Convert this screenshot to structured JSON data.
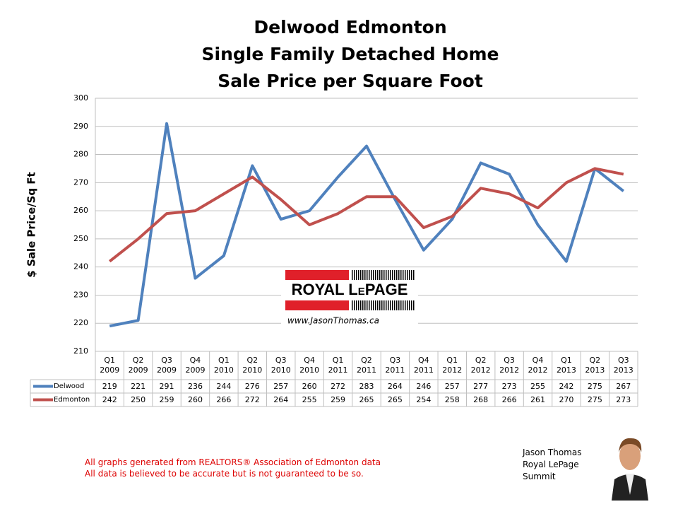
{
  "chart_data": {
    "type": "line",
    "title": "Delwood Edmonton",
    "subtitle": [
      "Single Family Detached Home",
      "Sale Price per Square Foot"
    ],
    "y_label": "$ Sale Price/Sq Ft",
    "categories": [
      "Q1\n2009",
      "Q2\n2009",
      "Q3\n2009",
      "Q4\n2009",
      "Q1\n2010",
      "Q2\n2010",
      "Q3\n2010",
      "Q4\n2010",
      "Q1\n2011",
      "Q2\n2011",
      "Q3\n2011",
      "Q4\n2011",
      "Q1\n2012",
      "Q2\n2012",
      "Q3\n2012",
      "Q4\n2012",
      "Q1\n2013",
      "Q2\n2013",
      "Q3\n2013"
    ],
    "series": [
      {
        "name": "Delwood",
        "color": "#4f81bd",
        "values": [
          219,
          221,
          291,
          236,
          244,
          276,
          257,
          260,
          272,
          283,
          264,
          246,
          257,
          277,
          273,
          255,
          242,
          275,
          267
        ]
      },
      {
        "name": "Edmonton",
        "color": "#c0504d",
        "values": [
          242,
          250,
          259,
          260,
          266,
          272,
          264,
          255,
          259,
          265,
          265,
          254,
          258,
          268,
          266,
          261,
          270,
          275,
          273
        ]
      }
    ],
    "ylim": [
      210,
      300
    ],
    "yticks": [
      210,
      220,
      230,
      240,
      250,
      260,
      270,
      280,
      290,
      300
    ],
    "grid": true
  },
  "logo": {
    "name": "ROYAL LePAGE",
    "url": "www.JasonThomas.ca"
  },
  "notes": [
    "All graphs generated from REALTORS® Association of Edmonton data",
    "All data is believed to be accurate but is not guaranteed to be so."
  ],
  "agent": [
    "Jason Thomas",
    "Royal LePage",
    "Summit"
  ]
}
